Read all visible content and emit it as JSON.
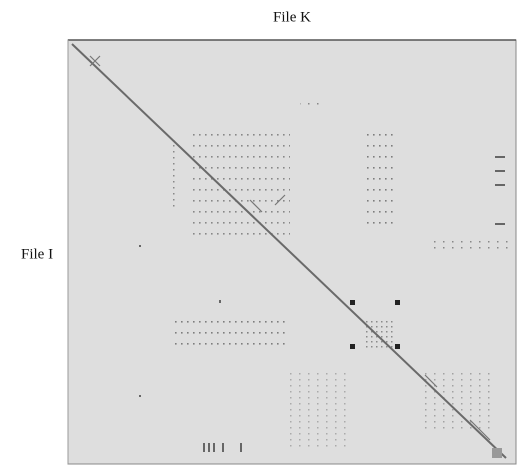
{
  "header": {
    "title": "File K"
  },
  "axis": {
    "label": "File I"
  }
}
